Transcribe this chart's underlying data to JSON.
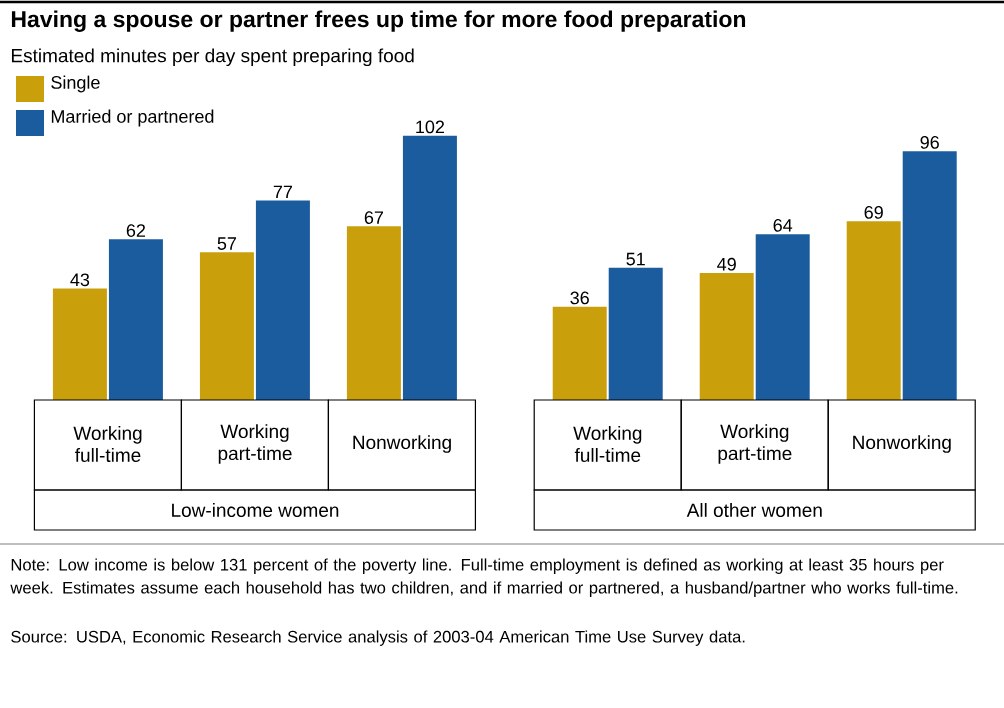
{
  "chart_data": {
    "type": "bar",
    "title": "Having a spouse or partner frees up time for more food preparation",
    "subtitle": "Estimated minutes per day spent preparing food",
    "categories": [
      "Working full-time",
      "Working part-time",
      "Nonworking",
      "Working full-time",
      "Working part-time",
      "Nonworking"
    ],
    "series": [
      {
        "name": "Single",
        "color": "#c9a00c",
        "values": [
          43,
          57,
          67,
          36,
          49,
          69
        ]
      },
      {
        "name": "Married or partnered",
        "color": "#1b5c9e",
        "values": [
          62,
          77,
          102,
          51,
          64,
          96
        ]
      }
    ],
    "data_labels": true,
    "legend": "top left",
    "annotations": [
      "Low-income women",
      "All other women",
      "Note: Low income is below 131 percent of the poverty line. Full-time employment is defined as working at least 35 hours per week. Estimates assume each household has two children, and if married or partnered, a husband/partner who works full-time.",
      "Source: USDA, Economic Research Service analysis of 2003-04 American Time Use Survey data."
    ]
  }
}
